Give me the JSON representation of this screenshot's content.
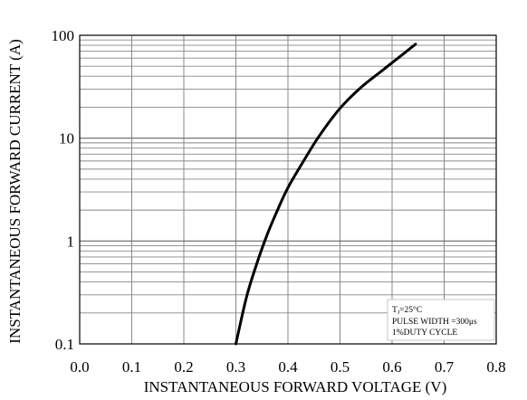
{
  "chart_data": {
    "type": "line",
    "xlabel": "INSTANTANEOUS FORWARD VOLTAGE (V)",
    "ylabel": "INSTANTANEOUS FORWARD CURRENT (A)",
    "xlim": [
      0.0,
      0.8
    ],
    "ylim": [
      0.1,
      100
    ],
    "yscale": "log",
    "grid": true,
    "x_ticks": [
      "0.0",
      "0.1",
      "0.2",
      "0.3",
      "0.4",
      "0.5",
      "0.6",
      "0.7",
      "0.8"
    ],
    "y_ticks": [
      "0.1",
      "1",
      "10",
      "100"
    ],
    "annotations": {
      "line1_main": "T",
      "line1_sub": "J",
      "line1_rest": "=25°C",
      "line2": "PULSE WIDTH =300μs",
      "line3": "1%DUTY CYCLE"
    },
    "series": [
      {
        "color": "#000000",
        "x": [
          0.3,
          0.32,
          0.34,
          0.36,
          0.38,
          0.4,
          0.43,
          0.46,
          0.5,
          0.54,
          0.58,
          0.62,
          0.645
        ],
        "y": [
          0.1,
          0.28,
          0.6,
          1.15,
          2.0,
          3.3,
          6.0,
          10.5,
          19.5,
          31,
          45,
          65,
          82
        ]
      }
    ]
  }
}
